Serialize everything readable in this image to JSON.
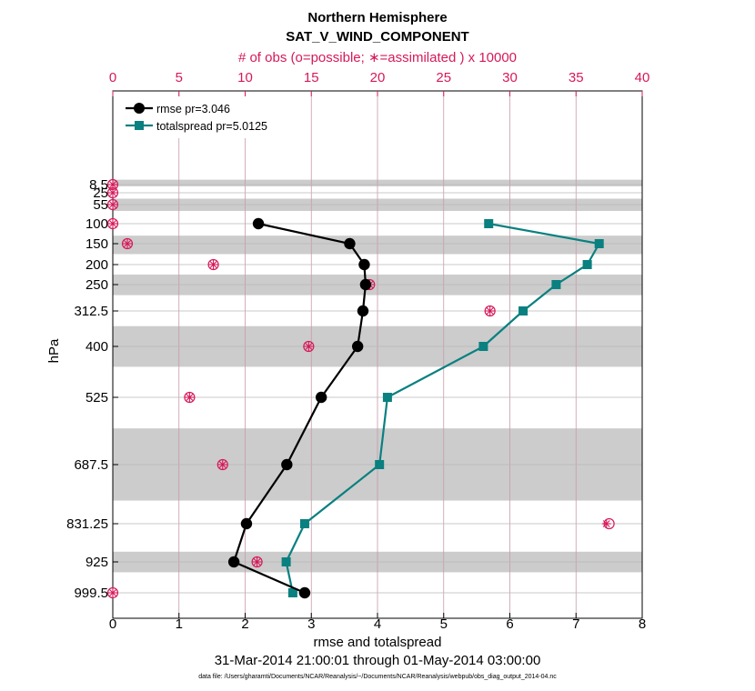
{
  "chart_data": {
    "type": "line",
    "title": "Northern Hemisphere",
    "subtitle": "SAT_V_WIND_COMPONENT",
    "top_axis_label": "# of obs (o=possible; ∗=assimilated ) x 10000",
    "xlabel": "rmse and totalspread",
    "ylabel": "hPa",
    "date_range": "31-Mar-2014 21:00:01 through 01-May-2014 03:00:00",
    "footnote": "data file: /Users/gharamti/Documents/NCAR/Reanalysis/~/Documents/NCAR/Reanalysis/webpub/obs_diag_output_2014-04.nc",
    "xlim": [
      0,
      8
    ],
    "x_ticks": [
      "0",
      "1",
      "2",
      "3",
      "4",
      "5",
      "6",
      "7",
      "8"
    ],
    "top_xlim": [
      0,
      40
    ],
    "top_ticks": [
      "0",
      "5",
      "10",
      "15",
      "20",
      "25",
      "30",
      "35",
      "40"
    ],
    "levels": [
      8.5,
      25,
      55,
      100,
      150,
      200,
      250,
      312.5,
      400,
      525,
      687.5,
      831.25,
      925,
      999.5
    ],
    "level_labels": [
      "8.5",
      "25",
      "55",
      "100",
      "150",
      "200",
      "250",
      "312.5",
      "400",
      "525",
      "687.5",
      "831.25",
      "925",
      "999.5"
    ],
    "layer_bands": [
      [
        5,
        12
      ],
      [
        40,
        70
      ],
      [
        130,
        175
      ],
      [
        225,
        275
      ],
      [
        350,
        450
      ],
      [
        600,
        775
      ],
      [
        900,
        950
      ]
    ],
    "series": [
      {
        "name": "rmse",
        "legend": "rmse pr=3.046",
        "color": "#000000",
        "marker": "circle",
        "points": [
          {
            "x": 2.2,
            "p": 100
          },
          {
            "x": 3.58,
            "p": 150
          },
          {
            "x": 3.8,
            "p": 200
          },
          {
            "x": 3.82,
            "p": 250
          },
          {
            "x": 3.78,
            "p": 312.5
          },
          {
            "x": 3.7,
            "p": 400
          },
          {
            "x": 3.15,
            "p": 525
          },
          {
            "x": 2.63,
            "p": 687.5
          },
          {
            "x": 2.02,
            "p": 831.25
          },
          {
            "x": 1.83,
            "p": 925
          },
          {
            "x": 2.9,
            "p": 999.5
          }
        ]
      },
      {
        "name": "totalspread",
        "legend": "totalspread pr=5.0125",
        "color": "#0a8080",
        "marker": "square",
        "points": [
          {
            "x": 5.68,
            "p": 100
          },
          {
            "x": 7.35,
            "p": 150
          },
          {
            "x": 7.17,
            "p": 200
          },
          {
            "x": 6.7,
            "p": 250
          },
          {
            "x": 6.2,
            "p": 312.5
          },
          {
            "x": 5.6,
            "p": 400
          },
          {
            "x": 4.15,
            "p": 525
          },
          {
            "x": 4.03,
            "p": 687.5
          },
          {
            "x": 2.9,
            "p": 831.25
          },
          {
            "x": 2.62,
            "p": 925
          },
          {
            "x": 2.72,
            "p": 999.5
          }
        ]
      }
    ],
    "obs_counts": {
      "unit": "x 10000",
      "color": "#d6195a",
      "possible": [
        {
          "p": 8.5,
          "n": 0
        },
        {
          "p": 25,
          "n": 0
        },
        {
          "p": 55,
          "n": 0
        },
        {
          "p": 100,
          "n": 0
        },
        {
          "p": 150,
          "n": 1.1
        },
        {
          "p": 200,
          "n": 7.6
        },
        {
          "p": 250,
          "n": 19.4
        },
        {
          "p": 312.5,
          "n": 28.5
        },
        {
          "p": 400,
          "n": 14.8
        },
        {
          "p": 525,
          "n": 5.8
        },
        {
          "p": 687.5,
          "n": 8.3
        },
        {
          "p": 831.25,
          "n": 37.5
        },
        {
          "p": 925,
          "n": 10.9
        },
        {
          "p": 999.5,
          "n": 0
        }
      ],
      "assimilated": [
        {
          "p": 8.5,
          "n": 0
        },
        {
          "p": 25,
          "n": 0
        },
        {
          "p": 55,
          "n": 0
        },
        {
          "p": 100,
          "n": 0
        },
        {
          "p": 150,
          "n": 1.1
        },
        {
          "p": 200,
          "n": 7.6
        },
        {
          "p": 250,
          "n": 19.4
        },
        {
          "p": 312.5,
          "n": 28.5
        },
        {
          "p": 400,
          "n": 14.8
        },
        {
          "p": 525,
          "n": 5.8
        },
        {
          "p": 687.5,
          "n": 8.3
        },
        {
          "p": 831.25,
          "n": 37.3
        },
        {
          "p": 925,
          "n": 10.9
        },
        {
          "p": 999.5,
          "n": 0
        }
      ]
    }
  }
}
